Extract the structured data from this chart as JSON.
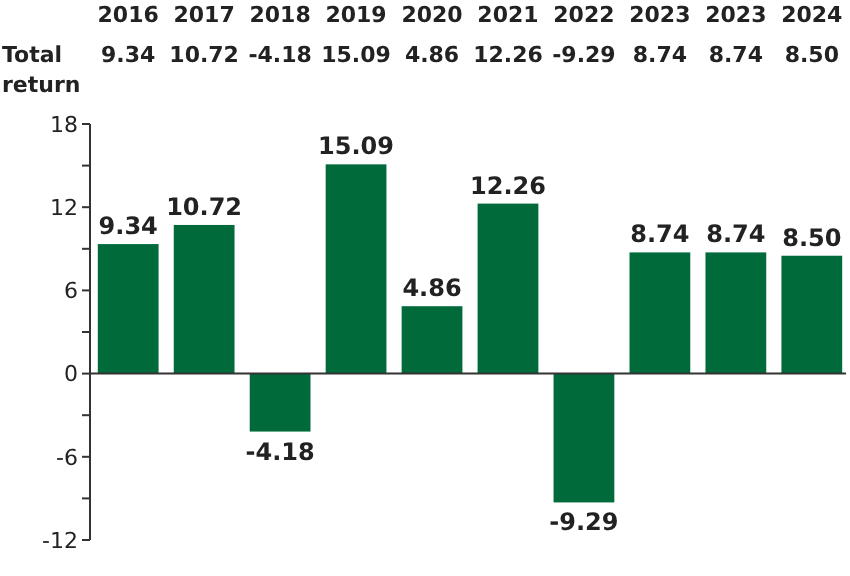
{
  "chart_data": {
    "type": "bar",
    "categories": [
      "2016",
      "2017",
      "2018",
      "2019",
      "2020",
      "2021",
      "2022",
      "2023",
      "2023",
      "2024"
    ],
    "values": [
      9.34,
      10.72,
      -4.18,
      15.09,
      4.86,
      12.26,
      -9.29,
      8.74,
      8.74,
      8.5
    ],
    "value_labels": [
      "9.34",
      "10.72",
      "-4.18",
      "15.09",
      "4.86",
      "12.26",
      "-9.29",
      "8.74",
      "8.74",
      "8.50"
    ],
    "color": "#006a3a",
    "ylim": [
      -12,
      18
    ],
    "yticks": [
      18,
      {
        "value": 15,
        "label": null
      },
      12,
      {
        "value": 9,
        "label": null
      },
      6,
      {
        "value": 3,
        "label": null
      },
      0,
      {
        "value": -3,
        "label": null
      },
      -6,
      {
        "value": -9,
        "label": null
      },
      -12
    ],
    "annotations": [
      "Total return"
    ],
    "data_labels": true
  }
}
